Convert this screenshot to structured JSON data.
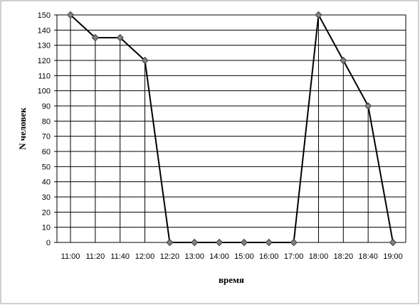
{
  "chart_data": {
    "type": "line",
    "title": "",
    "xlabel": "время",
    "ylabel": "N человек",
    "categories": [
      "11:00",
      "11:20",
      "11:40",
      "12:00",
      "12:20",
      "13:00",
      "14:00",
      "15:00",
      "16:00",
      "17:00",
      "18:00",
      "18:20",
      "18:40",
      "19:00"
    ],
    "series": [
      {
        "values": [
          150,
          135,
          135,
          120,
          0,
          0,
          0,
          0,
          0,
          0,
          150,
          120,
          90,
          0
        ]
      }
    ],
    "ylim": [
      0,
      150
    ],
    "ytick_step": 10,
    "grid": "horizontal gridlines; vertical drop lines at each point",
    "legend": "none",
    "colors": {
      "line": "#000000",
      "marker": "#808080",
      "grid": "#000000",
      "frame": "#a0a0a0"
    }
  }
}
